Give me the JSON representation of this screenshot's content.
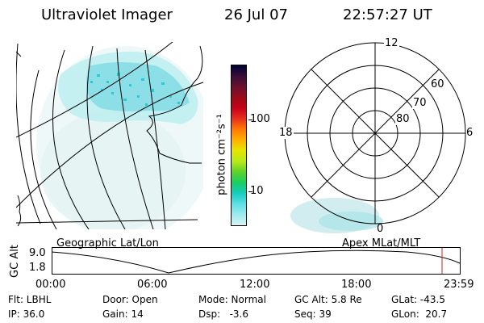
{
  "header": {
    "instrument": "Ultraviolet Imager",
    "date": "26 Jul 07",
    "time": "22:57:27 UT"
  },
  "geo_panel": {
    "label": "Geographic Lat/Lon"
  },
  "polar_panel": {
    "label": "Apex MLat/MLT",
    "mlt_labels": {
      "top": "12",
      "left": "18",
      "right": "6",
      "bottom": "0"
    },
    "lat_rings": [
      "80",
      "70",
      "60"
    ]
  },
  "colorbar": {
    "unit_label": "photon cm⁻²s⁻¹",
    "ticks": [
      "100",
      "10"
    ],
    "colors": [
      "#000033",
      "#3a0d3a",
      "#6a1030",
      "#9b0b17",
      "#c8001a",
      "#e8301e",
      "#ff7a00",
      "#ffb000",
      "#e6e600",
      "#b8e81a",
      "#5cd12a",
      "#17cf5f",
      "#14ccc0",
      "#5fe0e6",
      "#9eecef",
      "#d9f2f4"
    ]
  },
  "altitude_plot": {
    "ylabel": "GC Alt",
    "ymax": "9.0",
    "ymin": "1.8",
    "xticks": [
      "00:00",
      "06:00",
      "12:00",
      "18:00",
      "23:59"
    ]
  },
  "info": {
    "filter": "Flt: LBHL",
    "door": "Door: Open",
    "mode": "Mode: Normal",
    "gc_alt": "GC Alt: 5.8 Re",
    "glat": "GLat: -43.5",
    "ip": "IP: 36.0",
    "gain": "Gain: 14",
    "dsp": "Dsp:   -3.6",
    "seq": "Seq: 39",
    "glon": "GLon:  20.7"
  },
  "colors": {
    "glow_light": "#cfeef0",
    "glow_mid": "#8fe3ea",
    "glow_strong": "#2fcfd6",
    "marker": "#cc2222"
  }
}
